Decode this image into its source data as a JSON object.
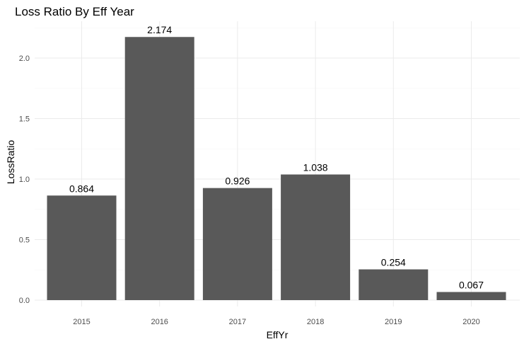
{
  "chart_data": {
    "type": "bar",
    "title": "Loss Ratio By Eff Year",
    "xlabel": "EffYr",
    "ylabel": "LossRatio",
    "categories": [
      "2015",
      "2016",
      "2017",
      "2018",
      "2019",
      "2020"
    ],
    "values": [
      0.864,
      2.174,
      0.926,
      1.038,
      0.254,
      0.067
    ],
    "data_labels": [
      "0.864",
      "2.174",
      "0.926",
      "1.038",
      "0.254",
      "0.067"
    ],
    "yticks": [
      0.0,
      0.5,
      1.0,
      1.5,
      2.0
    ],
    "ytick_labels": [
      "0.0",
      "0.5",
      "1.0",
      "1.5",
      "2.0"
    ],
    "ylim": [
      0,
      2.28
    ],
    "grid": true,
    "bar_color": "#595959",
    "grid_color": "#ebebeb"
  }
}
